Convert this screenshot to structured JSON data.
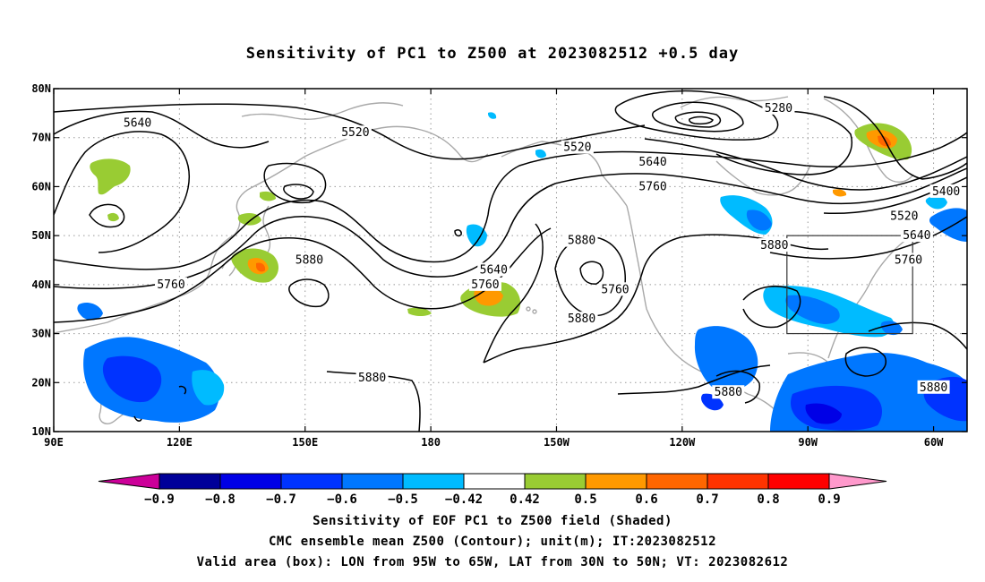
{
  "title": "Sensitivity of PC1 to Z500 at 2023082512 +0.5 day",
  "map": {
    "lon_labels": [
      "90E",
      "120E",
      "150E",
      "180",
      "150W",
      "120W",
      "90W",
      "60W"
    ],
    "lat_labels": [
      "80N",
      "70N",
      "60N",
      "50N",
      "40N",
      "30N",
      "20N",
      "10N"
    ],
    "contour_labels": [
      {
        "text": "5280",
        "lon": 263,
        "lat": 76
      },
      {
        "text": "5400",
        "lon": 303,
        "lat": 59
      },
      {
        "text": "5520",
        "lon": 162,
        "lat": 71
      },
      {
        "text": "5520",
        "lon": 215,
        "lat": 68
      },
      {
        "text": "5520",
        "lon": 293,
        "lat": 54
      },
      {
        "text": "5640",
        "lon": 110,
        "lat": 73
      },
      {
        "text": "5640",
        "lon": 233,
        "lat": 65
      },
      {
        "text": "5640",
        "lon": 195,
        "lat": 43
      },
      {
        "text": "5640",
        "lon": 296,
        "lat": 50
      },
      {
        "text": "5760",
        "lon": 233,
        "lat": 60
      },
      {
        "text": "5760",
        "lon": 193,
        "lat": 40
      },
      {
        "text": "5760",
        "lon": 224,
        "lat": 39
      },
      {
        "text": "5760",
        "lon": 294,
        "lat": 45
      },
      {
        "text": "5760",
        "lon": 118,
        "lat": 40
      },
      {
        "text": "5880",
        "lon": 151,
        "lat": 45
      },
      {
        "text": "5880",
        "lon": 216,
        "lat": 49
      },
      {
        "text": "5880",
        "lon": 262,
        "lat": 48
      },
      {
        "text": "5880",
        "lon": 216,
        "lat": 33
      },
      {
        "text": "5880",
        "lon": 166,
        "lat": 21
      },
      {
        "text": "5880",
        "lon": 251,
        "lat": 18
      },
      {
        "text": "5880",
        "lon": 300,
        "lat": 19
      }
    ],
    "valid_box": {
      "lon_min": 265,
      "lon_max": 295,
      "lat_min": 30,
      "lat_max": 50
    },
    "colors": {
      "land_outline": "#a8a8a8",
      "contour": "#000000",
      "grid": "#999999"
    }
  },
  "colorbar": {
    "labels": [
      "−0.9",
      "−0.8",
      "−0.7",
      "−0.6",
      "−0.5",
      "−0.42",
      "0.42",
      "0.5",
      "0.6",
      "0.7",
      "0.8",
      "0.9"
    ],
    "colors": [
      "#000099",
      "#0000e6",
      "#0033ff",
      "#0077ff",
      "#00bbff",
      "#ffffff",
      "#99cc33",
      "#ff9900",
      "#ff6600",
      "#ff3300",
      "#ff0000"
    ],
    "low_end_color": "#cc0099",
    "high_end_color": "#ff99cc"
  },
  "footer": {
    "line1": "Sensitivity of EOF PC1 to Z500 field (Shaded)",
    "line2": "CMC ensemble mean Z500 (Contour); unit(m); IT:2023082512",
    "line3": "Valid area (box): LON from 95W to 65W, LAT from 30N to 50N; VT: 2023082612"
  }
}
